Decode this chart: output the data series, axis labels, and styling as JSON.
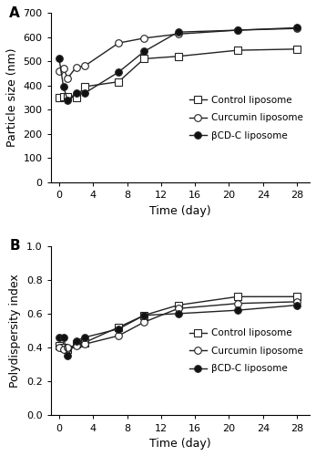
{
  "time_days": [
    0,
    0.5,
    1,
    2,
    3,
    7,
    10,
    14,
    21,
    28
  ],
  "panel_A": {
    "control": [
      350,
      355,
      352,
      350,
      395,
      415,
      510,
      520,
      545,
      550
    ],
    "curcumin": [
      460,
      470,
      430,
      475,
      480,
      575,
      595,
      612,
      628,
      635
    ],
    "bcd_c": [
      510,
      395,
      338,
      370,
      368,
      455,
      540,
      620,
      628,
      638
    ]
  },
  "panel_B": {
    "control": [
      0.41,
      0.4,
      0.39,
      0.42,
      0.43,
      0.52,
      0.59,
      0.65,
      0.7,
      0.7
    ],
    "curcumin": [
      0.4,
      0.39,
      0.4,
      0.41,
      0.42,
      0.47,
      0.55,
      0.63,
      0.66,
      0.67
    ],
    "bcd_c": [
      0.46,
      0.46,
      0.35,
      0.44,
      0.46,
      0.51,
      0.59,
      0.6,
      0.62,
      0.65
    ]
  },
  "xlabel": "Time (day)",
  "ylabel_A": "Particle size (nm)",
  "ylabel_B": "Polydispersity index",
  "label_A": "A",
  "label_B": "B",
  "legend_labels": [
    "Control liposome",
    "Curcumin liposome",
    "βCD-C liposome"
  ],
  "ylim_A": [
    0,
    700
  ],
  "ylim_B": [
    0.0,
    1.0
  ],
  "yticks_A": [
    0,
    100,
    200,
    300,
    400,
    500,
    600,
    700
  ],
  "yticks_B": [
    0.0,
    0.2,
    0.4,
    0.6,
    0.8,
    1.0
  ],
  "xticks": [
    0,
    4,
    8,
    12,
    16,
    20,
    24,
    28
  ],
  "line_color": "#222222",
  "control_marker": "s",
  "curcumin_marker": "o",
  "bcd_c_marker": "o",
  "control_fill": "white",
  "curcumin_fill": "white",
  "bcd_c_fill": "#111111",
  "markersize": 5.5,
  "linewidth": 1.0,
  "tick_fontsize": 8,
  "label_fontsize": 9,
  "panel_label_fontsize": 11
}
